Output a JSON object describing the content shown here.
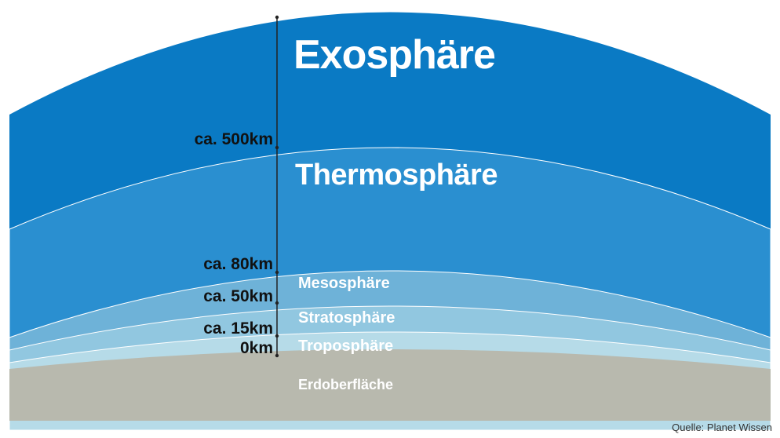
{
  "diagram": {
    "layers": [
      {
        "name": "Exosphäre",
        "color": "#0a7ac4"
      },
      {
        "name": "Thermosphäre",
        "color": "#2a8fd0"
      },
      {
        "name": "Mesosphäre",
        "color": "#6eb2d8"
      },
      {
        "name": "Stratosphäre",
        "color": "#91c7e0"
      },
      {
        "name": "Troposphäre",
        "color": "#b6dbe8"
      },
      {
        "name": "Erdoberfläche",
        "color": "#b8b9ae"
      }
    ],
    "altitudes": [
      "ca. 500km",
      "ca. 80km",
      "ca. 50km",
      "ca. 15km",
      "0km"
    ],
    "source": "Quelle: Planet Wissen"
  }
}
